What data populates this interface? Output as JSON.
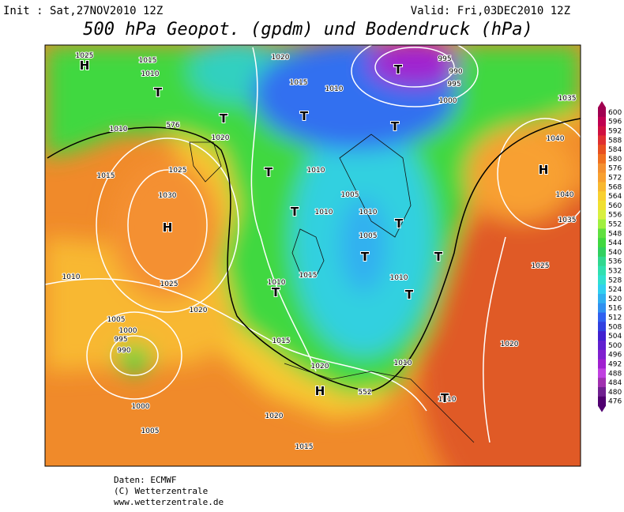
{
  "header": {
    "init": "Init : Sat,27NOV2010 12Z",
    "valid": "Valid: Fri,03DEC2010 12Z",
    "title": "500 hPa Geopot. (gpdm) und Bodendruck (hPa)"
  },
  "map": {
    "labels": [
      "1025",
      "1015",
      "1010",
      "1020",
      "1015",
      "1010",
      "995",
      "990",
      "995",
      "1000",
      "1035",
      "1040",
      "1010",
      "1020",
      "1025",
      "1030",
      "1015",
      "1010",
      "1005",
      "1010",
      "1010",
      "1005",
      "1015",
      "1010",
      "1010",
      "1010",
      "1025",
      "1020",
      "1005",
      "1000",
      "995",
      "990",
      "1015",
      "1020",
      "1010",
      "1010",
      "1000",
      "1005",
      "1020",
      "1015",
      "1040",
      "1035",
      "1025",
      "1020",
      "552",
      "576",
      "H",
      "H",
      "H",
      "H",
      "T",
      "T",
      "T",
      "T",
      "T",
      "T",
      "T",
      "T",
      "T",
      "T",
      "T",
      "T",
      "T"
    ]
  },
  "colorbar": {
    "labels": [
      600,
      596,
      592,
      588,
      584,
      580,
      576,
      572,
      568,
      564,
      560,
      556,
      552,
      548,
      544,
      540,
      536,
      532,
      528,
      524,
      520,
      516,
      512,
      508,
      504,
      500,
      496,
      492,
      488,
      484,
      480,
      476
    ],
    "colors": [
      "#a00050",
      "#c00050",
      "#d01040",
      "#e03030",
      "#e85020",
      "#f07020",
      "#f49030",
      "#f8a030",
      "#f8b830",
      "#f8d030",
      "#f0e030",
      "#d8f040",
      "#a0f040",
      "#60e040",
      "#40d840",
      "#30d060",
      "#30d890",
      "#30e0b0",
      "#30e0d0",
      "#30d0f0",
      "#30b0f0",
      "#3090f0",
      "#3060f0",
      "#3040e0",
      "#4020d0",
      "#6020d0",
      "#8020d0",
      "#a020d0",
      "#c040e0",
      "#a030b0",
      "#702090",
      "#500070"
    ]
  },
  "footer": {
    "source": "Daten: ECMWF",
    "copyright": "(C) Wetterzentrale",
    "url": "www.wetterzentrale.de"
  }
}
